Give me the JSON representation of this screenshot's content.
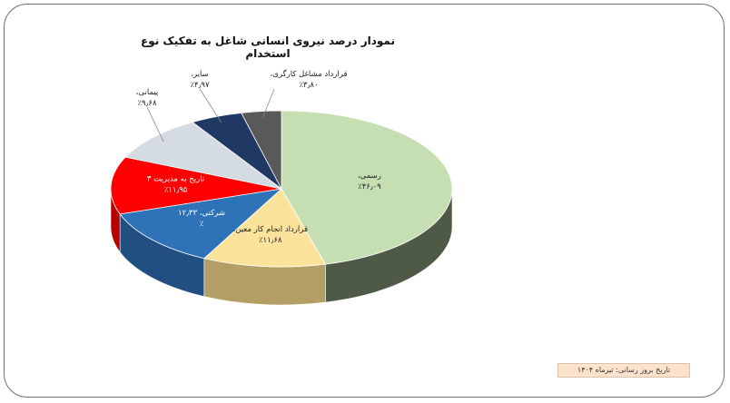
{
  "chart_data": {
    "type": "pie",
    "title": "نمودار درصد نیروی انسانی شاغل به تفکیک نوع استخدام",
    "slices": [
      {
        "label": "رسمی،",
        "value_label": "٪۴۶٫۰۹",
        "value": 46.09,
        "color": "#c5dfb3",
        "side": "#4f5a46"
      },
      {
        "label": "قرارداد انجام کار معین،",
        "value_label": "٪۱۱٫۶۸",
        "value": 11.68,
        "color": "#fbe39b",
        "side": "#b39f66"
      },
      {
        "label": "شرکتی، ۱۲٫۳۳",
        "value_label": "٪",
        "value": 12.33,
        "color": "#2e72b8",
        "side": "#214f82"
      },
      {
        "label": "تاریخ به مدیریت ۳",
        "value_label": "٪۱۱٫۹۵",
        "value": 11.95,
        "color": "#ff0000",
        "side": "#b80000"
      },
      {
        "label": "پیمانی،",
        "value_label": "٪۹٫۶۸",
        "value": 9.68,
        "color": "#d4dbe3",
        "side": "#8f99a4"
      },
      {
        "label": "سایر،",
        "value_label": "٪۴٫۹۷",
        "value": 4.97,
        "color": "#1f3864",
        "side": "#15264a"
      },
      {
        "label": "قرارداد مشاغل کارگری،",
        "value_label": "٪۳٫۸۰",
        "value": 3.8,
        "color": "#595959",
        "side": "#3a3a3a"
      }
    ],
    "legend": "none"
  },
  "footer": {
    "note": "تاریخ بروز رسانی: تیرماه ۱۴۰۴"
  }
}
